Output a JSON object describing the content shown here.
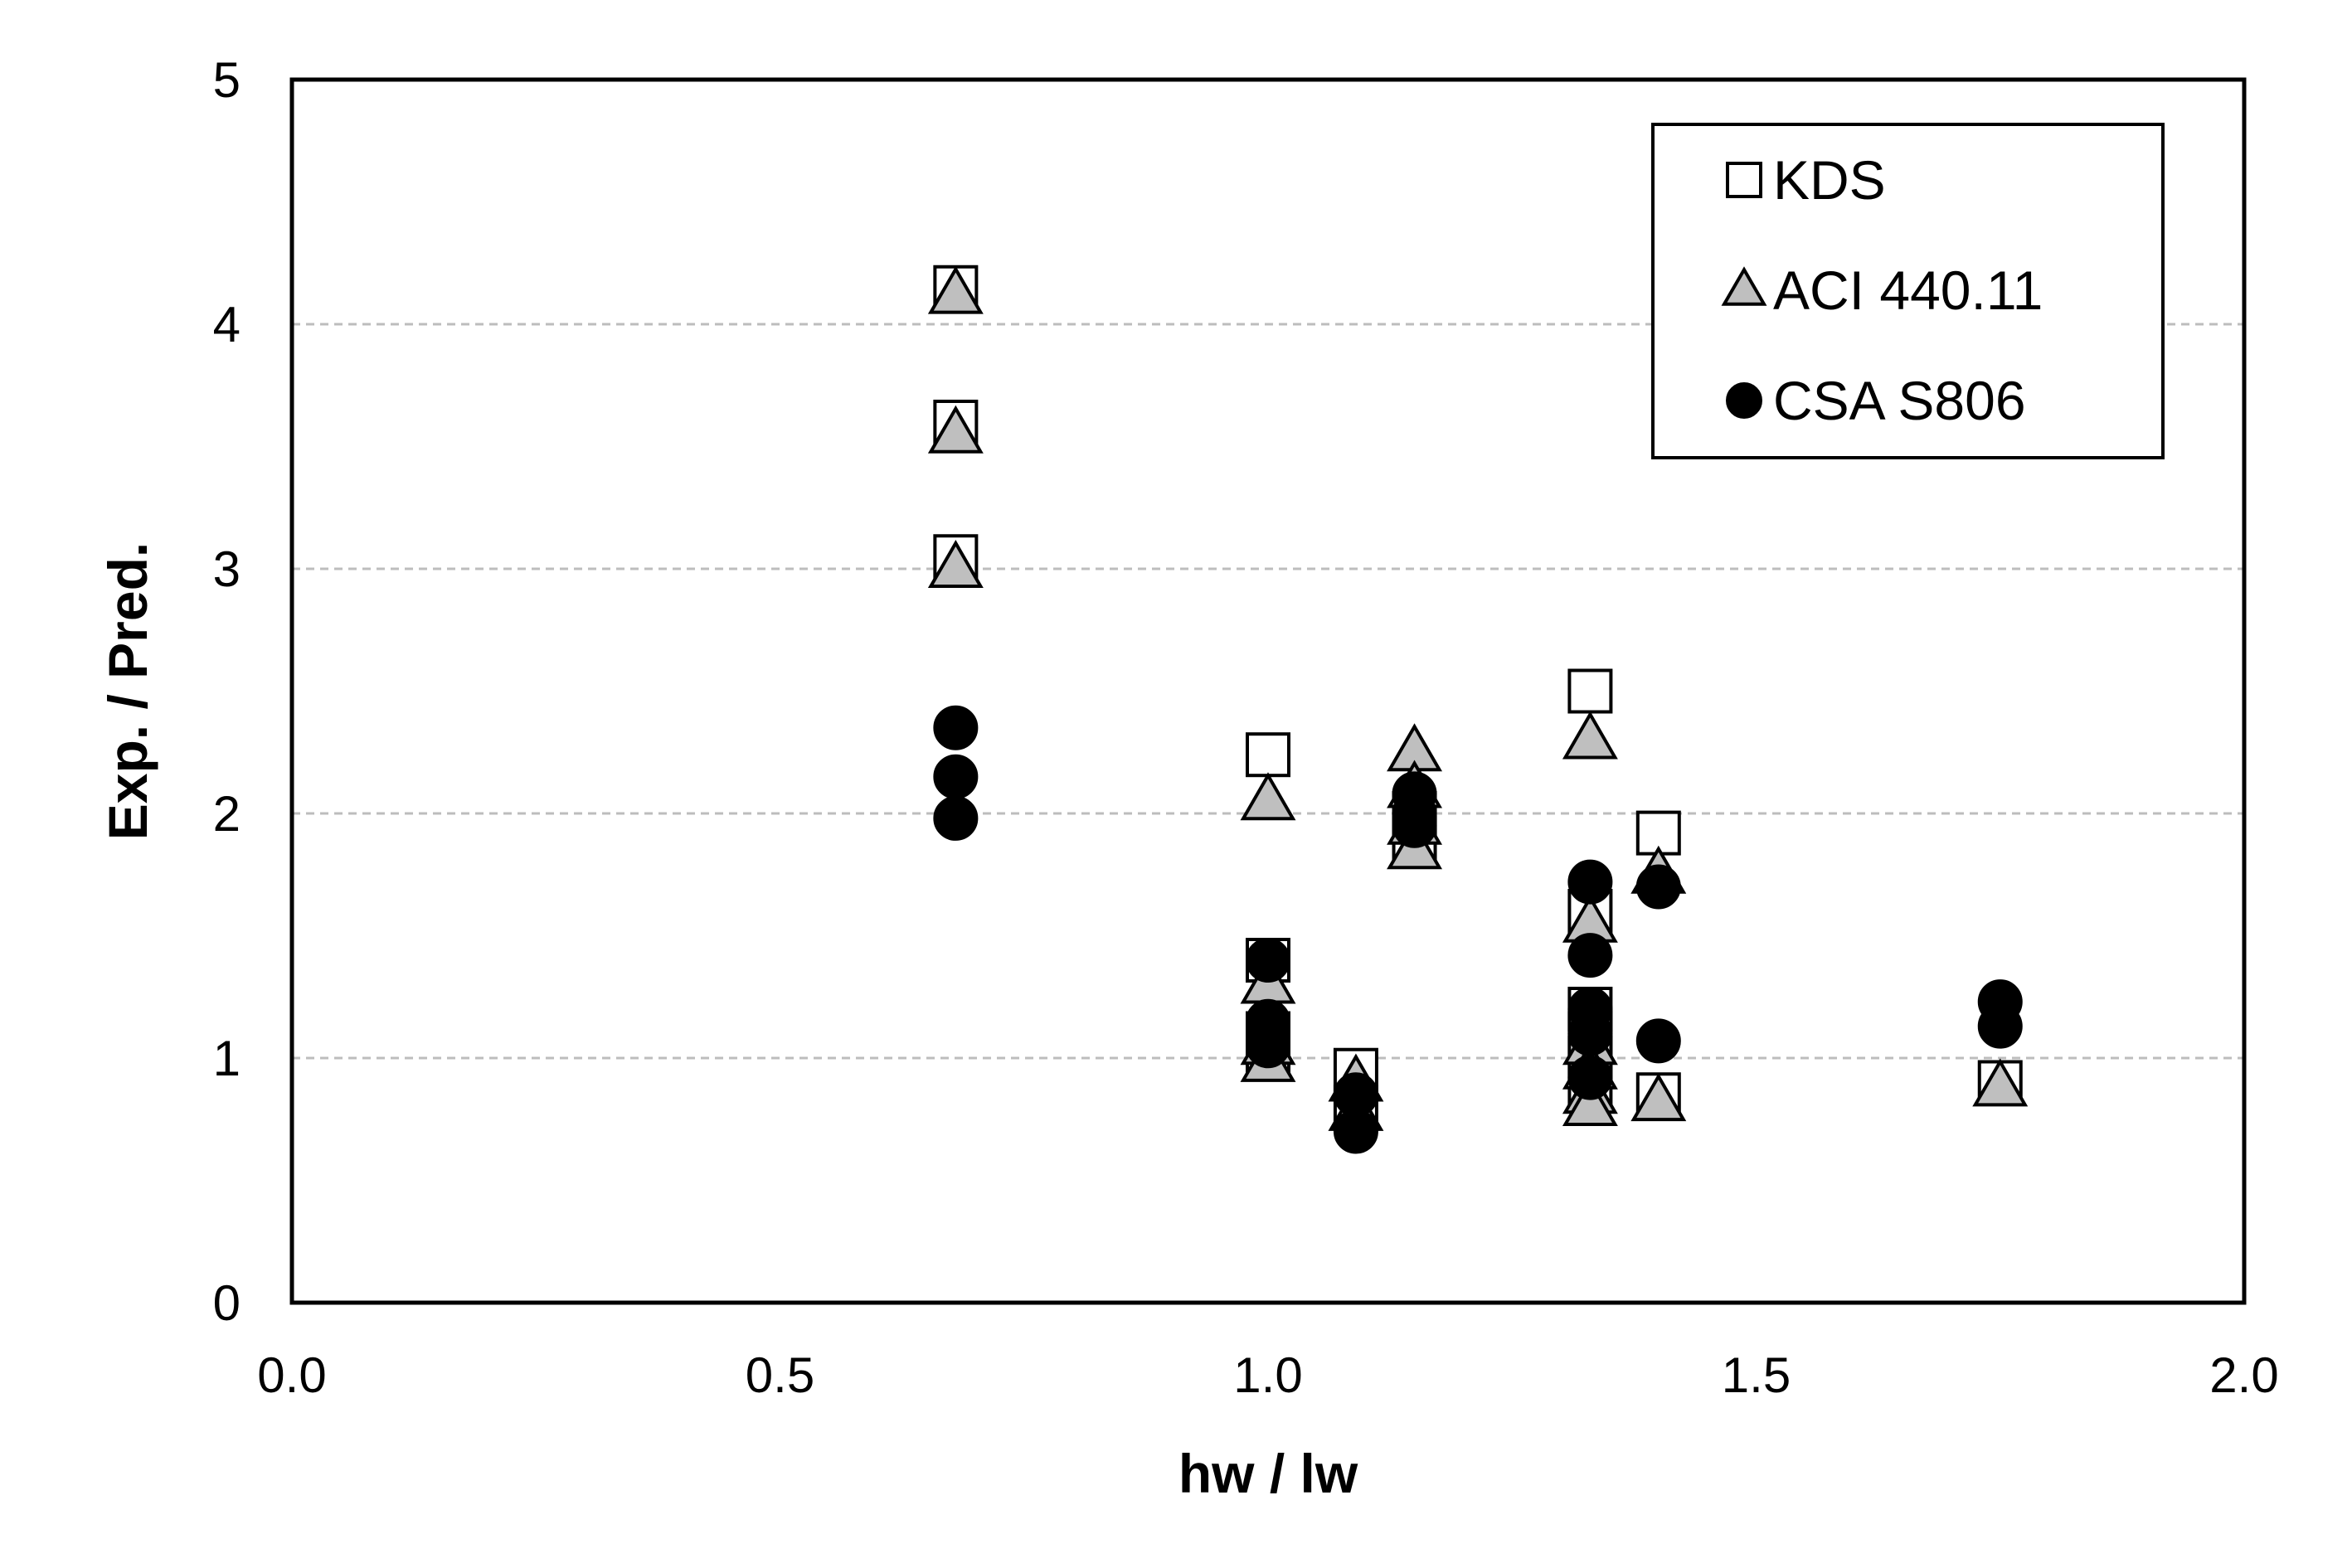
{
  "chart_data": {
    "type": "scatter",
    "title": "",
    "xlabel": "hw / lw",
    "ylabel": "Exp. / Pred.",
    "xlim": [
      0.0,
      2.0
    ],
    "ylim": [
      0,
      5
    ],
    "x_ticks": [
      "0.0",
      "0.5",
      "1.0",
      "1.5",
      "2.0"
    ],
    "y_ticks": [
      "0",
      "1",
      "2",
      "3",
      "4",
      "5"
    ],
    "grid": "horizontal dashed",
    "legend_position": "top-right",
    "series": [
      {
        "name": "KDS",
        "marker": "square",
        "color": "#ffffff",
        "points": [
          [
            0.68,
            4.15
          ],
          [
            0.68,
            3.6
          ],
          [
            0.68,
            3.05
          ],
          [
            1.0,
            2.24
          ],
          [
            1.0,
            1.4
          ],
          [
            1.0,
            1.1
          ],
          [
            1.0,
            1.02
          ],
          [
            1.09,
            0.95
          ],
          [
            1.09,
            0.8
          ],
          [
            1.15,
            2.0
          ],
          [
            1.15,
            1.9
          ],
          [
            1.33,
            2.5
          ],
          [
            1.33,
            1.6
          ],
          [
            1.33,
            1.2
          ],
          [
            1.33,
            1.1
          ],
          [
            1.33,
            1.0
          ],
          [
            1.33,
            0.9
          ],
          [
            1.4,
            1.92
          ],
          [
            1.4,
            0.85
          ],
          [
            1.75,
            0.9
          ]
        ]
      },
      {
        "name": "ACI 440.11",
        "marker": "triangle",
        "color": "#bfbfbf",
        "points": [
          [
            0.68,
            4.12
          ],
          [
            0.68,
            3.55
          ],
          [
            0.68,
            3.0
          ],
          [
            1.0,
            2.05
          ],
          [
            1.0,
            1.3
          ],
          [
            1.0,
            1.05
          ],
          [
            1.0,
            0.98
          ],
          [
            1.09,
            0.9
          ],
          [
            1.09,
            0.78
          ],
          [
            1.15,
            2.25
          ],
          [
            1.15,
            2.1
          ],
          [
            1.15,
            1.95
          ],
          [
            1.15,
            1.85
          ],
          [
            1.33,
            2.3
          ],
          [
            1.33,
            1.55
          ],
          [
            1.33,
            1.05
          ],
          [
            1.33,
            0.95
          ],
          [
            1.33,
            0.85
          ],
          [
            1.33,
            0.8
          ],
          [
            1.4,
            1.75
          ],
          [
            1.4,
            0.82
          ],
          [
            1.75,
            0.88
          ]
        ]
      },
      {
        "name": "CSA S806",
        "marker": "circle",
        "color": "#000000",
        "points": [
          [
            0.68,
            2.35
          ],
          [
            0.68,
            2.15
          ],
          [
            0.68,
            1.98
          ],
          [
            1.0,
            1.4
          ],
          [
            1.0,
            1.15
          ],
          [
            1.0,
            1.05
          ],
          [
            1.09,
            0.85
          ],
          [
            1.09,
            0.7
          ],
          [
            1.15,
            2.08
          ],
          [
            1.15,
            2.0
          ],
          [
            1.15,
            1.95
          ],
          [
            1.33,
            1.72
          ],
          [
            1.33,
            1.42
          ],
          [
            1.33,
            1.2
          ],
          [
            1.33,
            1.1
          ],
          [
            1.33,
            0.92
          ],
          [
            1.4,
            1.7
          ],
          [
            1.4,
            1.07
          ],
          [
            1.75,
            1.23
          ],
          [
            1.75,
            1.13
          ]
        ]
      }
    ]
  }
}
